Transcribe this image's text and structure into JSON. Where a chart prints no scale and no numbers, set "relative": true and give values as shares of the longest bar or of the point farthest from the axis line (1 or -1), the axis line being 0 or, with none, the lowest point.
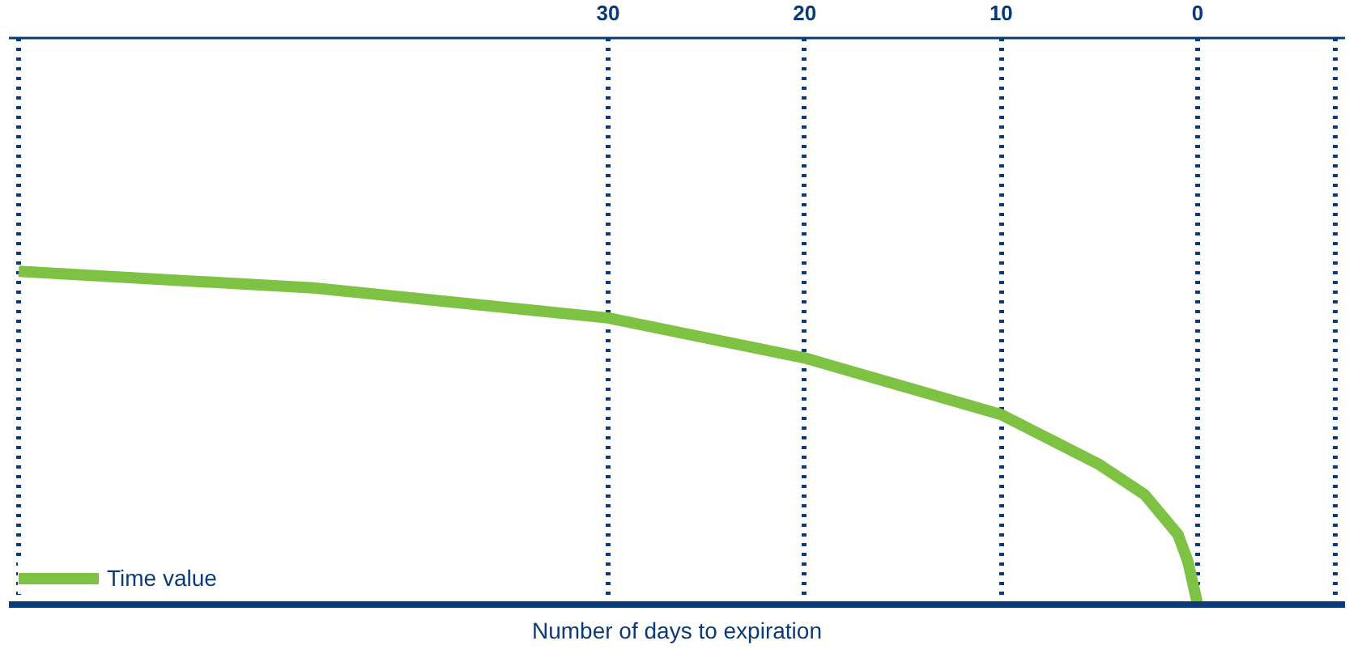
{
  "chart_data": {
    "type": "line",
    "relative": true,
    "xlabel": "Number of days to expiration",
    "legend": "bottom left",
    "grid": "x",
    "line_style": "solid",
    "marker": "none",
    "xlim": [
      60.5,
      -7.5
    ],
    "xticks": [
      {
        "value": 60,
        "label": null
      },
      30,
      20,
      10,
      0,
      {
        "value": -7,
        "label": null
      }
    ],
    "x": [
      60,
      45,
      30,
      25,
      20,
      10,
      5,
      2.7,
      1,
      0.5,
      0
    ],
    "series": [
      {
        "name": "Time value",
        "color": "#7dc242",
        "values": [
          1,
          0.95,
          0.86,
          0.8,
          0.74,
          0.57,
          0.42,
          0.33,
          0.21,
          0.13,
          0
        ]
      }
    ]
  }
}
